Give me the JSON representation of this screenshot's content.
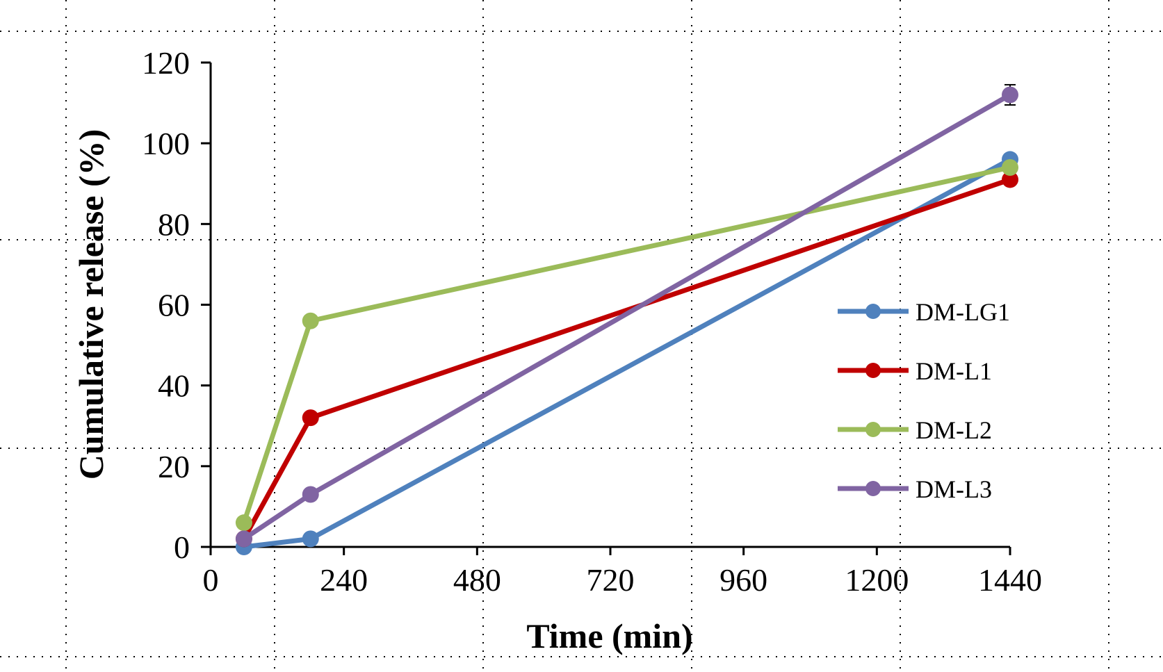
{
  "chart_data": {
    "type": "line",
    "title": "",
    "xlabel": "Time (min)",
    "ylabel": "Cumulative release (%)",
    "xlim": [
      0,
      1440
    ],
    "ylim": [
      0,
      120
    ],
    "x_ticks": [
      0,
      240,
      480,
      720,
      960,
      1200,
      1440
    ],
    "x_tick_labels": [
      "0",
      "240",
      "480",
      "720",
      "960",
      "1200",
      "1440"
    ],
    "y_ticks": [
      0,
      20,
      40,
      60,
      80,
      100,
      120
    ],
    "y_tick_labels": [
      "0",
      "20",
      "40",
      "60",
      "80",
      "100",
      "120"
    ],
    "grid": false,
    "legend_position": "right",
    "x": [
      60,
      180,
      1440
    ],
    "series": [
      {
        "name": "DM-LG1",
        "color": "#4F81BD",
        "values": [
          0,
          2,
          96
        ]
      },
      {
        "name": "DM-L1",
        "color": "#C00000",
        "values": [
          2,
          32,
          91
        ]
      },
      {
        "name": "DM-L2",
        "color": "#9BBB59",
        "values": [
          6,
          56,
          94
        ]
      },
      {
        "name": "DM-L3",
        "color": "#8064A2",
        "values": [
          2,
          13,
          112
        ],
        "error_bars": [
          0,
          0,
          2.5
        ]
      }
    ]
  }
}
